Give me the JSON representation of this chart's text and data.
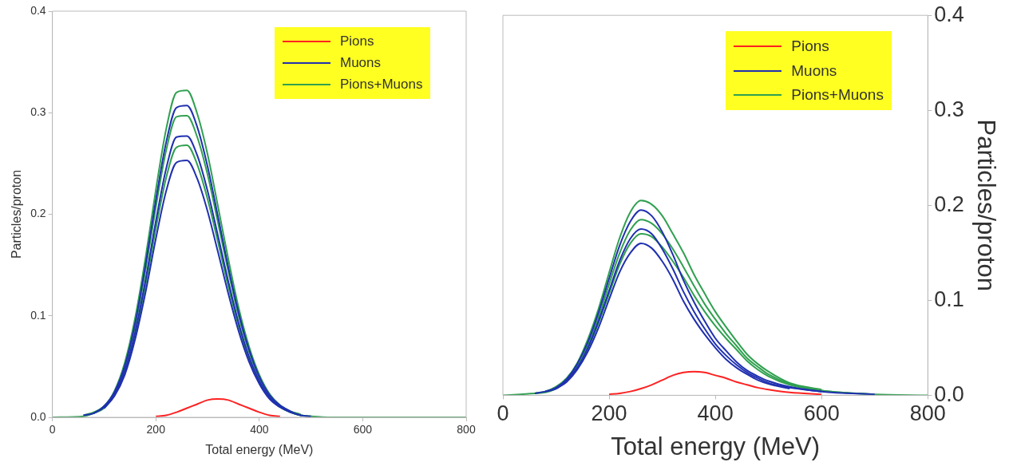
{
  "chart_data": [
    {
      "type": "line",
      "xlabel": "Total energy (MeV)",
      "ylabel": "Particles/proton",
      "legend": "top right",
      "x": [
        0,
        60,
        80,
        100,
        120,
        140,
        160,
        180,
        200,
        220,
        240,
        260,
        280,
        300,
        320,
        340,
        360,
        380,
        400,
        420,
        440,
        460,
        480,
        500,
        540,
        600,
        700,
        800
      ],
      "xlim": [
        0,
        800
      ],
      "xticks": [
        0,
        200,
        400,
        600,
        800
      ],
      "ylim": [
        0,
        0.4
      ],
      "yticks": [
        {
          "value": 0,
          "label": "0.0"
        },
        {
          "value": 0.1,
          "label": "0.1"
        },
        {
          "value": 0.2,
          "label": "0.2"
        },
        {
          "value": 0.3,
          "label": "0.3"
        },
        {
          "value": 0.4,
          "label": "0.4"
        }
      ],
      "series": [
        {
          "name": "Pions",
          "color": "#ff2020",
          "values": [
            null,
            null,
            null,
            null,
            null,
            null,
            null,
            null,
            0.001,
            0.002,
            0.005,
            0.009,
            0.013,
            0.017,
            0.018,
            0.017,
            0.013,
            0.009,
            0.005,
            0.002,
            0.001,
            null,
            null,
            null,
            null,
            null,
            null,
            null
          ]
        },
        {
          "name": "Muons",
          "color": "#2030b0",
          "values": [
            null,
            0.002,
            0.004,
            0.011,
            0.025,
            0.051,
            0.093,
            0.15,
            0.214,
            0.271,
            0.305,
            0.307,
            0.286,
            0.247,
            0.198,
            0.148,
            0.103,
            0.067,
            0.04,
            0.022,
            0.012,
            0.006,
            0.002,
            0.001,
            null,
            null,
            null,
            null
          ]
        },
        {
          "color": "#2030b0",
          "values": [
            null,
            null,
            0.004,
            0.01,
            0.023,
            0.046,
            0.084,
            0.135,
            0.193,
            0.245,
            0.276,
            0.277,
            0.258,
            0.223,
            0.179,
            0.134,
            0.093,
            0.06,
            0.036,
            0.02,
            0.011,
            0.005,
            0.002,
            null,
            null,
            null,
            null,
            null
          ]
        },
        {
          "color": "#2030b0",
          "values": [
            null,
            null,
            null,
            0.009,
            0.021,
            0.042,
            0.077,
            0.123,
            0.176,
            0.223,
            0.251,
            0.253,
            0.235,
            0.203,
            0.163,
            0.122,
            0.085,
            0.055,
            0.033,
            0.018,
            0.01,
            0.005,
            null,
            null,
            null,
            null,
            null,
            null
          ]
        },
        {
          "name": "Pions+Muons",
          "color": "#30a050",
          "values": [
            null,
            0.002,
            0.005,
            0.011,
            0.026,
            0.054,
            0.098,
            0.157,
            0.224,
            0.284,
            0.32,
            0.322,
            0.299,
            0.259,
            0.208,
            0.156,
            0.108,
            0.07,
            0.042,
            0.023,
            0.012,
            0.006,
            0.003,
            null,
            null,
            null,
            null,
            null
          ]
        },
        {
          "color": "#30a050",
          "values": [
            null,
            null,
            0.004,
            0.011,
            0.024,
            0.05,
            0.09,
            0.145,
            0.207,
            0.263,
            0.296,
            0.297,
            0.276,
            0.239,
            0.192,
            0.144,
            0.1,
            0.065,
            0.039,
            0.022,
            0.011,
            0.005,
            0.002,
            0.001,
            null,
            null,
            null,
            null
          ]
        },
        {
          "color": "#30a050",
          "values": [
            0,
            0.001,
            0.004,
            0.009,
            0.022,
            0.045,
            0.081,
            0.13,
            0.186,
            0.236,
            0.266,
            0.268,
            0.249,
            0.215,
            0.173,
            0.129,
            0.09,
            0.058,
            0.035,
            0.019,
            0.01,
            0.005,
            0.002,
            0.001,
            0,
            0,
            0,
            0
          ]
        }
      ]
    },
    {
      "type": "line",
      "xlabel": "Total energy (MeV)",
      "y2label": "Particles/proton",
      "legend": "top right",
      "x": [
        0,
        60,
        80,
        100,
        120,
        140,
        160,
        180,
        200,
        220,
        240,
        260,
        280,
        300,
        320,
        340,
        360,
        380,
        400,
        420,
        440,
        460,
        480,
        500,
        540,
        600,
        700,
        800
      ],
      "xlim": [
        0,
        800
      ],
      "xticks": [
        0,
        200,
        400,
        600,
        800
      ],
      "y2lim": [
        0,
        0.4
      ],
      "y2ticks": [
        {
          "value": 0,
          "label": "0.0"
        },
        {
          "value": 0.1,
          "label": "0.1"
        },
        {
          "value": 0.2,
          "label": "0.2"
        },
        {
          "value": 0.3,
          "label": "0.3"
        },
        {
          "value": 0.4,
          "label": "0.4"
        }
      ],
      "series": [
        {
          "name": "Pions",
          "color": "#ff2020",
          "axis": "y2",
          "values": [
            null,
            null,
            null,
            null,
            null,
            null,
            null,
            null,
            0.001,
            0.002,
            0.004,
            0.007,
            0.011,
            0.016,
            0.021,
            0.024,
            0.025,
            0.024,
            0.021,
            0.018,
            0.014,
            0.011,
            0.008,
            0.006,
            0.003,
            0.001,
            null,
            null
          ]
        },
        {
          "name": "Muons",
          "color": "#2030b0",
          "axis": "y2",
          "values": [
            null,
            0.002,
            0.004,
            0.008,
            0.017,
            0.033,
            0.056,
            0.087,
            0.123,
            0.158,
            0.183,
            0.195,
            0.189,
            0.172,
            0.148,
            0.121,
            0.098,
            0.078,
            0.06,
            0.047,
            0.035,
            0.026,
            0.02,
            0.015,
            0.009,
            0.004,
            0.001,
            null
          ]
        },
        {
          "color": "#2030b0",
          "axis": "y2",
          "values": [
            null,
            null,
            0.004,
            0.007,
            0.016,
            0.029,
            0.05,
            0.078,
            0.11,
            0.142,
            0.165,
            0.175,
            0.17,
            0.154,
            0.133,
            0.109,
            0.088,
            0.07,
            0.054,
            0.042,
            0.032,
            0.024,
            0.018,
            0.013,
            0.008,
            0.004,
            null,
            null
          ]
        },
        {
          "color": "#2030b0",
          "axis": "y2",
          "values": [
            null,
            null,
            null,
            0.007,
            0.014,
            0.027,
            0.046,
            0.071,
            0.101,
            0.13,
            0.15,
            0.16,
            0.155,
            0.141,
            0.122,
            0.099,
            0.08,
            0.064,
            0.05,
            0.038,
            0.029,
            0.022,
            0.016,
            0.012,
            0.007,
            null,
            null,
            null
          ]
        },
        {
          "name": "Pions+Muons",
          "color": "#30a050",
          "axis": "y2",
          "values": [
            null,
            0.002,
            0.004,
            0.009,
            0.018,
            0.034,
            0.059,
            0.091,
            0.129,
            0.166,
            0.193,
            0.205,
            0.201,
            0.189,
            0.17,
            0.15,
            0.127,
            0.107,
            0.088,
            0.072,
            0.057,
            0.043,
            0.033,
            0.025,
            0.013,
            0.006,
            null,
            null
          ]
        },
        {
          "color": "#30a050",
          "axis": "y2",
          "values": [
            null,
            null,
            0.004,
            0.008,
            0.016,
            0.031,
            0.053,
            0.082,
            0.117,
            0.15,
            0.174,
            0.185,
            0.181,
            0.17,
            0.154,
            0.135,
            0.115,
            0.096,
            0.08,
            0.065,
            0.052,
            0.039,
            0.03,
            0.022,
            0.012,
            0.005,
            0.001,
            null
          ]
        },
        {
          "color": "#30a050",
          "axis": "y2",
          "values": [
            0,
            0.002,
            0.003,
            0.007,
            0.015,
            0.028,
            0.049,
            0.076,
            0.107,
            0.138,
            0.16,
            0.17,
            0.167,
            0.156,
            0.141,
            0.124,
            0.105,
            0.088,
            0.073,
            0.06,
            0.048,
            0.036,
            0.027,
            0.02,
            0.011,
            0.005,
            0.001,
            0
          ]
        }
      ]
    }
  ]
}
